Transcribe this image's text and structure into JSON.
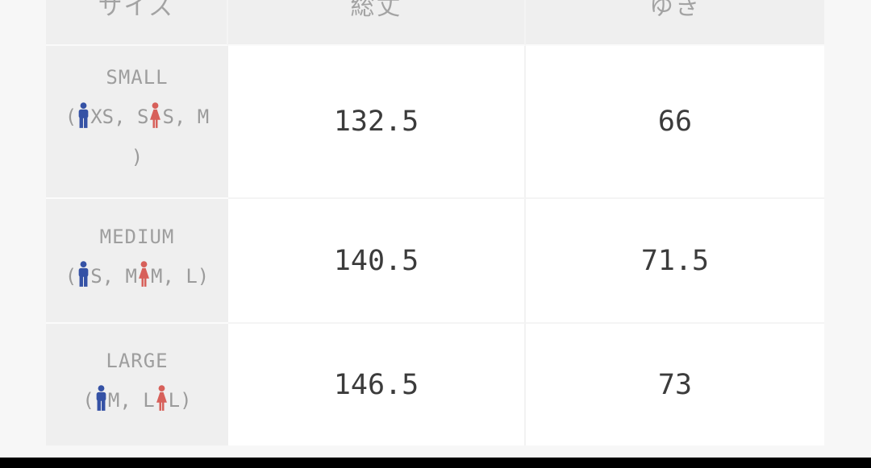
{
  "table": {
    "columns": [
      {
        "label": "サイズ"
      },
      {
        "label": "総丈"
      },
      {
        "label": "ゆき"
      }
    ],
    "rows": [
      {
        "size_name": "SMALL",
        "detail": [
          {
            "type": "text",
            "value": "("
          },
          {
            "type": "man-icon"
          },
          {
            "type": "text",
            "value": "XS, S"
          },
          {
            "type": "woman-icon"
          },
          {
            "type": "text",
            "value": "S, M"
          },
          {
            "type": "break"
          },
          {
            "type": "text",
            "value": ")"
          }
        ],
        "length": "132.5",
        "yuki": "66"
      },
      {
        "size_name": "MEDIUM",
        "detail": [
          {
            "type": "text",
            "value": "("
          },
          {
            "type": "man-icon"
          },
          {
            "type": "text",
            "value": "S, M"
          },
          {
            "type": "woman-icon"
          },
          {
            "type": "text",
            "value": "M, L"
          },
          {
            "type": "text",
            "value": ")"
          }
        ],
        "length": "140.5",
        "yuki": "71.5"
      },
      {
        "size_name": "LARGE",
        "detail": [
          {
            "type": "text",
            "value": "("
          },
          {
            "type": "man-icon"
          },
          {
            "type": "text",
            "value": "M, L"
          },
          {
            "type": "woman-icon"
          },
          {
            "type": "text",
            "value": "L"
          },
          {
            "type": "text",
            "value": ")"
          }
        ],
        "length": "146.5",
        "yuki": "73"
      }
    ]
  },
  "icons": {
    "man_color": "#3552a5",
    "woman_color": "#d7605a"
  },
  "colors": {
    "page_background": "#f7f7f7",
    "cell_gray": "#efefef",
    "cell_white": "#ffffff",
    "header_text": "#a3a3a3",
    "label_text": "#9e9e9e",
    "number_text": "#3b3b3b",
    "bottom_bar": "#000000"
  }
}
